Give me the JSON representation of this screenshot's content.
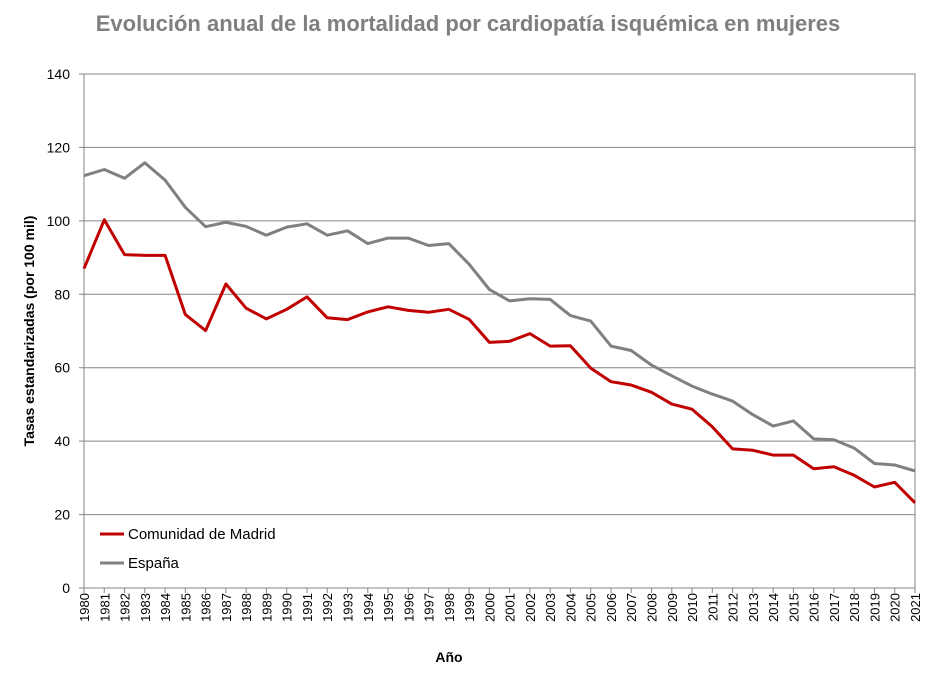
{
  "chart_data": {
    "type": "line",
    "title": "Evolución anual de la mortalidad por cardiopatía isquémica en mujeres",
    "xlabel": "Año",
    "ylabel": "Tasas estandarizadas (por 100 mil)",
    "ylim": [
      0,
      140
    ],
    "yticks": [
      "0",
      "20",
      "40",
      "60",
      "80",
      "100",
      "120",
      "140"
    ],
    "grid": true,
    "legend_position": "bottom-left",
    "x": [
      "1980",
      "1981",
      "1982",
      "1983",
      "1984",
      "1985",
      "1986",
      "1987",
      "1988",
      "1989",
      "1990",
      "1991",
      "1992",
      "1993",
      "1994",
      "1995",
      "1996",
      "1997",
      "1998",
      "1999",
      "2000",
      "2001",
      "2002",
      "2003",
      "2004",
      "2005",
      "2006",
      "2007",
      "2008",
      "2009",
      "2010",
      "2011",
      "2012",
      "2013",
      "2014",
      "2015",
      "2016",
      "2017",
      "2018",
      "2019",
      "2020",
      "2021"
    ],
    "series": [
      {
        "name": "Comunidad de Madrid",
        "color": "#c00000",
        "values": [
          87.0,
          100.3,
          90.8,
          90.6,
          90.6,
          74.5,
          70.1,
          82.8,
          76.2,
          73.3,
          75.9,
          79.3,
          73.6,
          73.1,
          75.2,
          76.6,
          75.6,
          75.1,
          75.9,
          73.2,
          66.9,
          67.2,
          69.3,
          65.9,
          66.0,
          59.9,
          56.2,
          55.3,
          53.3,
          50.1,
          48.7,
          43.9,
          37.9,
          37.5,
          36.2,
          36.2,
          32.5,
          33.0,
          30.7,
          27.5,
          28.8,
          23.2
        ]
      },
      {
        "name": "España",
        "color": "#808080",
        "values": [
          112.3,
          114.0,
          111.6,
          115.8,
          111.1,
          103.7,
          98.4,
          99.6,
          98.5,
          96.1,
          98.3,
          99.2,
          96.1,
          97.3,
          93.8,
          95.3,
          95.3,
          93.3,
          93.8,
          88.2,
          81.3,
          78.2,
          78.8,
          78.6,
          74.2,
          72.7,
          65.9,
          64.7,
          60.7,
          57.8,
          55.0,
          52.8,
          50.9,
          47.2,
          44.1,
          45.5,
          40.6,
          40.4,
          38.1,
          33.9,
          33.5,
          31.9
        ]
      }
    ]
  }
}
